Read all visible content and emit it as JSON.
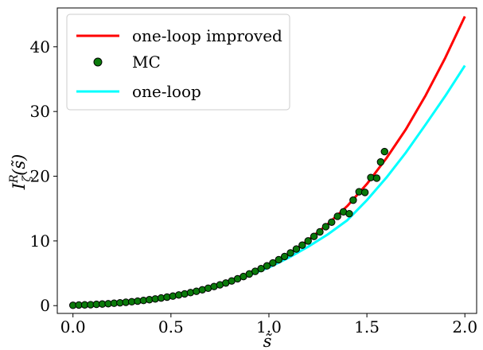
{
  "chart_data": {
    "type": "line",
    "xlabel": "s̃",
    "ylabel": "I",
    "ylabel_sup": "R",
    "ylabel_sub": "ζ",
    "ylabel_arg": "(s̃)",
    "xlim": [
      -0.08,
      2.06
    ],
    "ylim": [
      -1.2,
      46
    ],
    "xticks": [
      0.0,
      0.5,
      1.0,
      1.5,
      2.0
    ],
    "xtick_labels": [
      "0.0",
      "0.5",
      "1.0",
      "1.5",
      "2.0"
    ],
    "yticks": [
      0,
      10,
      20,
      30,
      40
    ],
    "ytick_labels": [
      "0",
      "10",
      "20",
      "30",
      "40"
    ],
    "legend_position": "top-left",
    "grid": false,
    "series": [
      {
        "name": "one-loop improved",
        "kind": "line",
        "color": "#ff0000",
        "x": [
          0.0,
          0.1,
          0.2,
          0.3,
          0.4,
          0.5,
          0.6,
          0.7,
          0.8,
          0.9,
          1.0,
          1.1,
          1.2,
          1.3,
          1.4,
          1.5,
          1.6,
          1.7,
          1.8,
          1.9,
          2.0
        ],
        "y": [
          0.0,
          0.1,
          0.3,
          0.6,
          1.0,
          1.5,
          2.1,
          2.9,
          3.8,
          5.0,
          6.3,
          7.9,
          10.1,
          12.6,
          15.4,
          18.8,
          22.8,
          27.3,
          32.5,
          38.3,
          44.7
        ]
      },
      {
        "name": "MC",
        "kind": "scatter",
        "color": "#0a7a0a",
        "x": [
          0.0,
          0.03,
          0.06,
          0.09,
          0.12,
          0.15,
          0.18,
          0.21,
          0.24,
          0.27,
          0.3,
          0.33,
          0.36,
          0.39,
          0.42,
          0.45,
          0.48,
          0.51,
          0.54,
          0.57,
          0.6,
          0.63,
          0.66,
          0.69,
          0.72,
          0.75,
          0.78,
          0.81,
          0.84,
          0.87,
          0.9,
          0.93,
          0.96,
          0.99,
          1.02,
          1.05,
          1.08,
          1.11,
          1.14,
          1.17,
          1.2,
          1.23,
          1.26,
          1.29,
          1.32,
          1.35,
          1.38,
          1.41,
          1.43,
          1.46,
          1.49,
          1.52,
          1.55,
          1.57,
          1.59
        ],
        "y": [
          0.05,
          0.1,
          0.12,
          0.15,
          0.2,
          0.25,
          0.3,
          0.37,
          0.44,
          0.52,
          0.6,
          0.7,
          0.8,
          0.92,
          1.04,
          1.18,
          1.32,
          1.48,
          1.65,
          1.82,
          2.02,
          2.22,
          2.45,
          2.7,
          2.95,
          3.22,
          3.5,
          3.82,
          4.15,
          4.5,
          4.9,
          5.3,
          5.72,
          6.15,
          6.6,
          7.1,
          7.6,
          8.15,
          8.75,
          9.35,
          10.0,
          10.7,
          11.4,
          12.2,
          12.9,
          13.8,
          14.5,
          14.2,
          16.3,
          17.6,
          17.5,
          19.8,
          19.7,
          22.2,
          23.8
        ]
      },
      {
        "name": "one-loop",
        "kind": "line",
        "color": "#00ffff",
        "x": [
          0.0,
          0.1,
          0.2,
          0.3,
          0.4,
          0.5,
          0.6,
          0.7,
          0.8,
          0.9,
          1.0,
          1.1,
          1.2,
          1.3,
          1.4,
          1.5,
          1.6,
          1.7,
          1.8,
          1.9,
          2.0
        ],
        "y": [
          0.0,
          0.1,
          0.3,
          0.6,
          1.0,
          1.4,
          2.0,
          2.7,
          3.6,
          4.7,
          5.9,
          7.4,
          9.1,
          11.0,
          13.2,
          16.3,
          19.8,
          23.7,
          28.0,
          32.4,
          37.1
        ]
      }
    ]
  }
}
